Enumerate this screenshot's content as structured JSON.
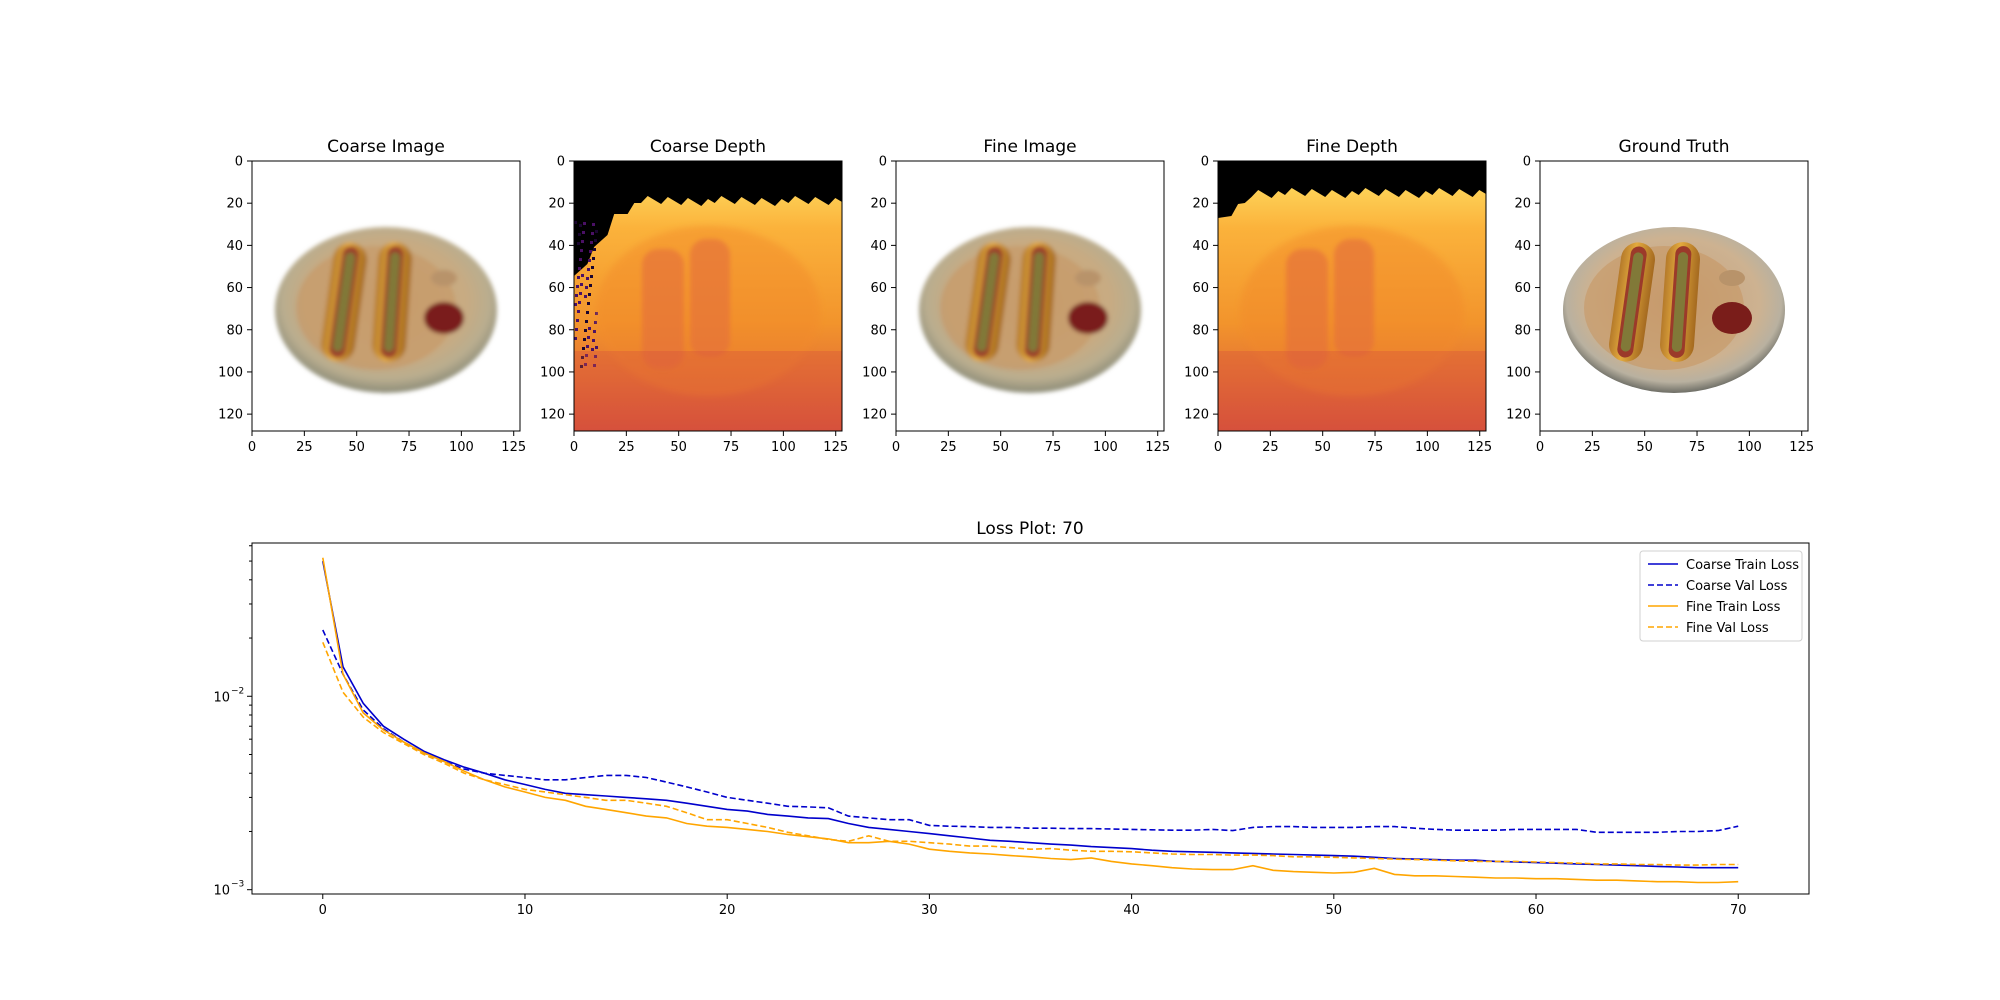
{
  "panels": [
    {
      "title": "Coarse Image",
      "kind": "image"
    },
    {
      "title": "Coarse Depth",
      "kind": "depth"
    },
    {
      "title": "Fine Image",
      "kind": "image"
    },
    {
      "title": "Fine Depth",
      "kind": "depth"
    },
    {
      "title": "Ground Truth",
      "kind": "image"
    }
  ],
  "image_axes": {
    "x_ticks": [
      "0",
      "25",
      "50",
      "75",
      "100",
      "125"
    ],
    "y_ticks": [
      "0",
      "20",
      "40",
      "60",
      "80",
      "100",
      "120"
    ],
    "xlim": [
      0,
      128
    ],
    "ylim": [
      0,
      128
    ]
  },
  "colors": {
    "coarse": "#0000cc",
    "fine": "#ffa500",
    "depth_far": "#000000",
    "depth_mid": "#f5a623",
    "depth_near": "#d9503a"
  },
  "chart_data": {
    "type": "line",
    "title": "Loss Plot: 70",
    "xlabel": "",
    "ylabel": "",
    "y_scale": "log",
    "xlim": [
      -3.5,
      73.5
    ],
    "ylim": [
      0.00095,
      0.062
    ],
    "x_ticks": [
      0,
      10,
      20,
      30,
      40,
      50,
      60,
      70
    ],
    "y_ticks": [
      {
        "value": 0.01,
        "label": "10",
        "exp": "−2"
      },
      {
        "value": 0.001,
        "label": "10",
        "exp": "−3"
      }
    ],
    "legend": "top-right",
    "series": [
      {
        "name": "Coarse Train Loss",
        "style": "solid",
        "color": "#0000cc",
        "values": [
          0.05,
          0.0142,
          0.0092,
          0.007,
          0.006,
          0.0052,
          0.0047,
          0.0043,
          0.004,
          0.0037,
          0.0035,
          0.0033,
          0.00315,
          0.0031,
          0.00305,
          0.003,
          0.00295,
          0.0029,
          0.0028,
          0.0027,
          0.0026,
          0.00255,
          0.00245,
          0.0024,
          0.00235,
          0.00233,
          0.0022,
          0.0021,
          0.00205,
          0.002,
          0.00195,
          0.0019,
          0.00185,
          0.0018,
          0.00178,
          0.00175,
          0.00172,
          0.0017,
          0.00167,
          0.00165,
          0.00163,
          0.0016,
          0.00158,
          0.00157,
          0.00156,
          0.00155,
          0.00154,
          0.00153,
          0.00152,
          0.00151,
          0.0015,
          0.00149,
          0.00147,
          0.00145,
          0.00144,
          0.00143,
          0.00142,
          0.00142,
          0.0014,
          0.00139,
          0.00138,
          0.00137,
          0.00136,
          0.00135,
          0.00134,
          0.00133,
          0.00132,
          0.00131,
          0.0013,
          0.0013,
          0.0013
        ]
      },
      {
        "name": "Coarse Val Loss",
        "style": "dashed",
        "color": "#0000cc",
        "values": [
          0.022,
          0.013,
          0.0085,
          0.0068,
          0.0058,
          0.0051,
          0.0046,
          0.0042,
          0.004,
          0.0039,
          0.0038,
          0.0037,
          0.0037,
          0.0038,
          0.0039,
          0.0039,
          0.0038,
          0.0036,
          0.0034,
          0.0032,
          0.003,
          0.0029,
          0.0028,
          0.0027,
          0.00268,
          0.00265,
          0.0024,
          0.00235,
          0.0023,
          0.0023,
          0.00215,
          0.00213,
          0.00212,
          0.0021,
          0.0021,
          0.00208,
          0.00208,
          0.00207,
          0.00207,
          0.00206,
          0.00205,
          0.00204,
          0.00203,
          0.00203,
          0.00205,
          0.00202,
          0.0021,
          0.00212,
          0.00212,
          0.0021,
          0.0021,
          0.0021,
          0.00212,
          0.00212,
          0.00208,
          0.00205,
          0.00203,
          0.00203,
          0.00203,
          0.00205,
          0.00205,
          0.00205,
          0.00205,
          0.00198,
          0.00198,
          0.00198,
          0.00198,
          0.002,
          0.002,
          0.00202,
          0.00213
        ]
      },
      {
        "name": "Fine Train Loss",
        "style": "solid",
        "color": "#ffa500",
        "values": [
          0.052,
          0.013,
          0.0082,
          0.0067,
          0.0058,
          0.0051,
          0.0046,
          0.0041,
          0.0037,
          0.0034,
          0.0032,
          0.003,
          0.0029,
          0.0027,
          0.0026,
          0.0025,
          0.0024,
          0.00235,
          0.0022,
          0.00213,
          0.0021,
          0.00205,
          0.002,
          0.00193,
          0.00188,
          0.00183,
          0.00175,
          0.00175,
          0.00178,
          0.00172,
          0.00162,
          0.00158,
          0.00155,
          0.00153,
          0.0015,
          0.00148,
          0.00145,
          0.00143,
          0.00146,
          0.0014,
          0.00136,
          0.00133,
          0.0013,
          0.00128,
          0.00127,
          0.00127,
          0.00133,
          0.00126,
          0.00124,
          0.00123,
          0.00122,
          0.00123,
          0.00129,
          0.0012,
          0.00118,
          0.00118,
          0.00117,
          0.00116,
          0.00115,
          0.00115,
          0.00114,
          0.00114,
          0.00113,
          0.00112,
          0.00112,
          0.00111,
          0.0011,
          0.0011,
          0.00109,
          0.00109,
          0.0011
        ]
      },
      {
        "name": "Fine Val Loss",
        "style": "dashed",
        "color": "#ffa500",
        "values": [
          0.019,
          0.0105,
          0.0078,
          0.0065,
          0.0057,
          0.005,
          0.0045,
          0.004,
          0.0037,
          0.0035,
          0.0033,
          0.0032,
          0.0031,
          0.003,
          0.0029,
          0.0029,
          0.0028,
          0.0027,
          0.0025,
          0.0023,
          0.0023,
          0.0022,
          0.0021,
          0.00198,
          0.0019,
          0.00182,
          0.00178,
          0.0019,
          0.00178,
          0.00178,
          0.00175,
          0.00172,
          0.00168,
          0.00168,
          0.00165,
          0.00162,
          0.00163,
          0.0016,
          0.00158,
          0.00158,
          0.00157,
          0.00155,
          0.00153,
          0.00152,
          0.00152,
          0.00151,
          0.00151,
          0.0015,
          0.00148,
          0.00148,
          0.00147,
          0.00146,
          0.00145,
          0.00144,
          0.00143,
          0.00142,
          0.00141,
          0.0014,
          0.0014,
          0.0014,
          0.00139,
          0.00138,
          0.00137,
          0.00136,
          0.00136,
          0.00135,
          0.00135,
          0.00134,
          0.00134,
          0.00135,
          0.00135
        ]
      }
    ]
  }
}
